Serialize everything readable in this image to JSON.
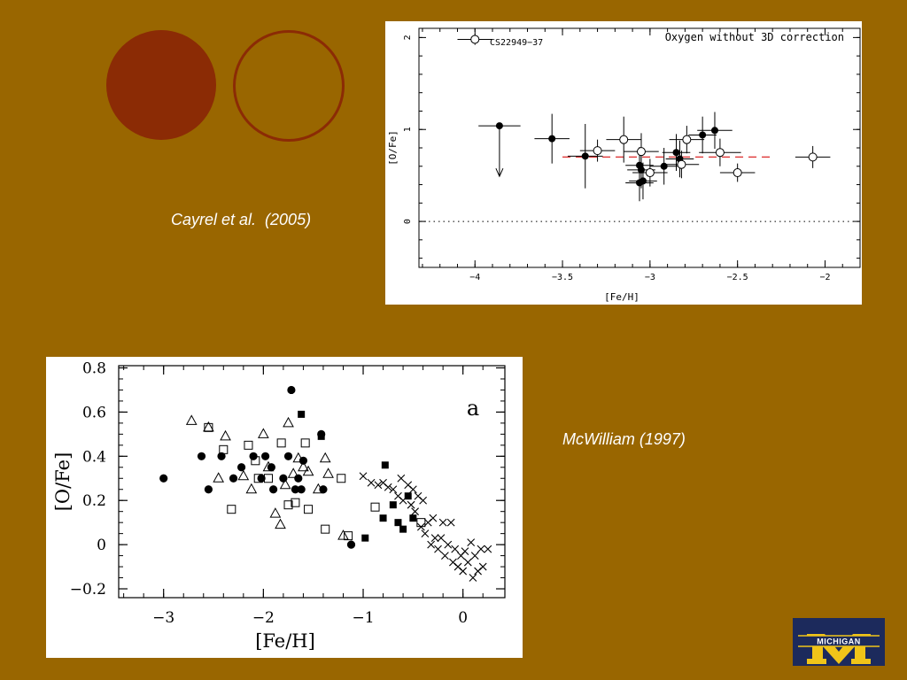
{
  "captions": {
    "top": "Cayrel et al.  (2005)",
    "bottom": "McWilliam (1997)"
  },
  "colors": {
    "background": "#996600",
    "accent": "#8b2b05",
    "reference_line": "#e04040",
    "logo_blue": "#1c2a5c",
    "logo_maize": "#f0c419"
  },
  "logo": {
    "text": "MICHIGAN"
  },
  "chart_data": [
    {
      "type": "scatter",
      "annotation": "Oxygen without 3D correction",
      "xlabel": "[Fe/H]",
      "ylabel": "[O/Fe]",
      "xlim": [
        -4.32,
        -1.8
      ],
      "ylim": [
        -0.5,
        2.1
      ],
      "xticks": [
        -4,
        -3.5,
        -3,
        -2.5,
        -2
      ],
      "xtick_labels": [
        "−4",
        "−3.5",
        "−3",
        "−2.5",
        "−2"
      ],
      "yticks": [
        0,
        1,
        2
      ],
      "ytick_labels": [
        "0",
        "1",
        "2"
      ],
      "reference_lines": [
        {
          "y": 0,
          "style": "dotted",
          "color": "#000000"
        },
        {
          "y": 0.7,
          "x": [
            -3.5,
            -2.3
          ],
          "style": "dashed",
          "color": "#e04040"
        }
      ],
      "legend_label": "CS22949−37",
      "series": [
        {
          "marker": "filled-circle",
          "points": [
            {
              "x": -3.86,
              "y": 1.04,
              "xerr": 0.12,
              "yerr": 0,
              "upper_limit": true
            },
            {
              "x": -3.56,
              "y": 0.9,
              "xerr": 0.1,
              "yerr": 0.27
            },
            {
              "x": -3.37,
              "y": 0.71,
              "xerr": 0.1,
              "yerr": 0.35
            },
            {
              "x": -3.06,
              "y": 0.61,
              "xerr": 0.08,
              "yerr": 0.2
            },
            {
              "x": -3.05,
              "y": 0.56,
              "xerr": 0.08,
              "yerr": 0.2
            },
            {
              "x": -3.06,
              "y": 0.42,
              "xerr": 0.08,
              "yerr": 0.2
            },
            {
              "x": -3.04,
              "y": 0.44,
              "xerr": 0.08,
              "yerr": 0.2
            },
            {
              "x": -2.92,
              "y": 0.6,
              "xerr": 0.08,
              "yerr": 0.2
            },
            {
              "x": -2.85,
              "y": 0.75,
              "xerr": 0.08,
              "yerr": 0.2
            },
            {
              "x": -2.83,
              "y": 0.68,
              "xerr": 0.08,
              "yerr": 0.2
            },
            {
              "x": -2.7,
              "y": 0.94,
              "xerr": 0.08,
              "yerr": 0.2
            },
            {
              "x": -2.63,
              "y": 0.99,
              "xerr": 0.1,
              "yerr": 0.2
            }
          ]
        },
        {
          "marker": "open-circle",
          "points": [
            {
              "x": -3.3,
              "y": 0.77,
              "xerr": 0.1,
              "yerr": 0.12
            },
            {
              "x": -3.15,
              "y": 0.89,
              "xerr": 0.1,
              "yerr": 0.25
            },
            {
              "x": -3.05,
              "y": 0.76,
              "xerr": 0.1,
              "yerr": 0.2
            },
            {
              "x": -3.0,
              "y": 0.53,
              "xerr": 0.1,
              "yerr": 0.15
            },
            {
              "x": -2.82,
              "y": 0.62,
              "xerr": 0.1,
              "yerr": 0.15
            },
            {
              "x": -2.79,
              "y": 0.89,
              "xerr": 0.1,
              "yerr": 0.15
            },
            {
              "x": -2.6,
              "y": 0.75,
              "xerr": 0.12,
              "yerr": 0.15
            },
            {
              "x": -2.5,
              "y": 0.53,
              "xerr": 0.1,
              "yerr": 0.1
            },
            {
              "x": -2.07,
              "y": 0.7,
              "xerr": 0.1,
              "yerr": 0.12
            },
            {
              "x": -4.0,
              "y": 1.98,
              "xerr": 0.1,
              "yerr": 0.06
            }
          ]
        }
      ]
    },
    {
      "type": "scatter",
      "annotation": "a",
      "xlabel": "[Fe/H]",
      "ylabel": "[O/Fe]",
      "xlim": [
        -3.45,
        0.42
      ],
      "ylim": [
        -0.24,
        0.81
      ],
      "xticks": [
        -3,
        -2,
        -1,
        0
      ],
      "xtick_labels": [
        "−3",
        "−2",
        "−1",
        "0"
      ],
      "yticks": [
        -0.2,
        0,
        0.2,
        0.4,
        0.6,
        0.8
      ],
      "ytick_labels": [
        "−0.2",
        "0",
        "0.2",
        "0.4",
        "0.6",
        "0.8"
      ],
      "series": [
        {
          "marker": "filled-circle",
          "points": [
            [
              -3.0,
              0.3
            ],
            [
              -2.62,
              0.4
            ],
            [
              -2.55,
              0.25
            ],
            [
              -2.42,
              0.4
            ],
            [
              -2.3,
              0.3
            ],
            [
              -2.22,
              0.35
            ],
            [
              -2.1,
              0.4
            ],
            [
              -2.02,
              0.3
            ],
            [
              -1.98,
              0.4
            ],
            [
              -1.92,
              0.35
            ],
            [
              -1.9,
              0.25
            ],
            [
              -1.8,
              0.3
            ],
            [
              -1.75,
              0.4
            ],
            [
              -1.72,
              0.7
            ],
            [
              -1.68,
              0.25
            ],
            [
              -1.65,
              0.3
            ],
            [
              -1.62,
              0.25
            ],
            [
              -1.6,
              0.38
            ],
            [
              -1.42,
              0.5
            ],
            [
              -1.4,
              0.25
            ],
            [
              -1.12,
              0.0
            ]
          ]
        },
        {
          "marker": "filled-square",
          "points": [
            [
              -1.62,
              0.59
            ],
            [
              -1.42,
              0.49
            ],
            [
              -0.98,
              0.03
            ],
            [
              -0.8,
              0.12
            ],
            [
              -0.78,
              0.36
            ],
            [
              -0.7,
              0.18
            ],
            [
              -0.65,
              0.1
            ],
            [
              -0.6,
              0.07
            ],
            [
              -0.55,
              0.22
            ],
            [
              -0.5,
              0.12
            ]
          ]
        },
        {
          "marker": "open-triangle",
          "points": [
            [
              -2.72,
              0.56
            ],
            [
              -2.55,
              0.53
            ],
            [
              -2.45,
              0.3
            ],
            [
              -2.38,
              0.49
            ],
            [
              -2.2,
              0.31
            ],
            [
              -2.12,
              0.25
            ],
            [
              -2.0,
              0.5
            ],
            [
              -1.95,
              0.35
            ],
            [
              -1.88,
              0.14
            ],
            [
              -1.83,
              0.09
            ],
            [
              -1.78,
              0.27
            ],
            [
              -1.75,
              0.55
            ],
            [
              -1.7,
              0.32
            ],
            [
              -1.65,
              0.39
            ],
            [
              -1.6,
              0.35
            ],
            [
              -1.55,
              0.33
            ],
            [
              -1.45,
              0.25
            ],
            [
              -1.38,
              0.39
            ],
            [
              -1.35,
              0.32
            ],
            [
              -1.2,
              0.04
            ]
          ]
        },
        {
          "marker": "open-square",
          "points": [
            [
              -2.55,
              0.53
            ],
            [
              -2.4,
              0.43
            ],
            [
              -2.32,
              0.16
            ],
            [
              -2.15,
              0.45
            ],
            [
              -2.08,
              0.38
            ],
            [
              -2.05,
              0.3
            ],
            [
              -1.95,
              0.3
            ],
            [
              -1.82,
              0.46
            ],
            [
              -1.75,
              0.18
            ],
            [
              -1.68,
              0.19
            ],
            [
              -1.58,
              0.46
            ],
            [
              -1.55,
              0.16
            ],
            [
              -1.38,
              0.07
            ],
            [
              -1.22,
              0.3
            ],
            [
              -1.15,
              0.04
            ],
            [
              -0.88,
              0.17
            ],
            [
              -0.42,
              0.1
            ]
          ]
        },
        {
          "marker": "cross",
          "points": [
            [
              -1.0,
              0.31
            ],
            [
              -0.92,
              0.28
            ],
            [
              -0.85,
              0.27
            ],
            [
              -0.8,
              0.28
            ],
            [
              -0.75,
              0.26
            ],
            [
              -0.7,
              0.25
            ],
            [
              -0.65,
              0.22
            ],
            [
              -0.62,
              0.3
            ],
            [
              -0.6,
              0.2
            ],
            [
              -0.55,
              0.27
            ],
            [
              -0.52,
              0.18
            ],
            [
              -0.5,
              0.25
            ],
            [
              -0.48,
              0.15
            ],
            [
              -0.45,
              0.22
            ],
            [
              -0.42,
              0.08
            ],
            [
              -0.4,
              0.2
            ],
            [
              -0.38,
              0.05
            ],
            [
              -0.35,
              0.1
            ],
            [
              -0.32,
              0.0
            ],
            [
              -0.3,
              0.12
            ],
            [
              -0.28,
              0.03
            ],
            [
              -0.25,
              -0.02
            ],
            [
              -0.22,
              0.03
            ],
            [
              -0.2,
              0.1
            ],
            [
              -0.18,
              -0.05
            ],
            [
              -0.15,
              0.0
            ],
            [
              -0.12,
              0.1
            ],
            [
              -0.1,
              -0.08
            ],
            [
              -0.08,
              -0.02
            ],
            [
              -0.05,
              -0.1
            ],
            [
              -0.02,
              -0.05
            ],
            [
              0.0,
              -0.12
            ],
            [
              0.02,
              -0.03
            ],
            [
              0.05,
              -0.08
            ],
            [
              0.08,
              0.01
            ],
            [
              0.1,
              -0.15
            ],
            [
              0.12,
              -0.05
            ],
            [
              0.15,
              -0.12
            ],
            [
              0.18,
              -0.02
            ],
            [
              0.2,
              -0.1
            ],
            [
              0.25,
              -0.02
            ]
          ]
        }
      ]
    }
  ]
}
